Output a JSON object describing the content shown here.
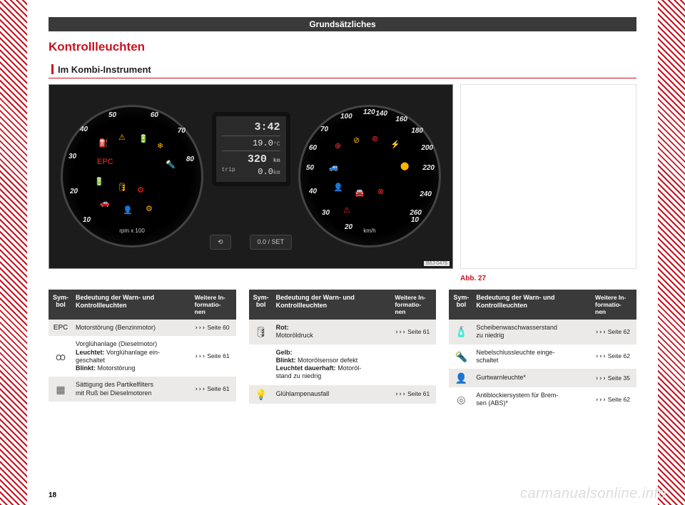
{
  "chapter": "Grundsätzliches",
  "heading": "Kontrollleuchten",
  "section": "Im Kombi-Instrument",
  "page_number": "18",
  "watermark": "carmanualsonline.info",
  "figure": {
    "caption": "Abb. 27",
    "code": "B6J-0476",
    "lcd": {
      "time": "3:42",
      "temp_value": "19.0",
      "temp_unit": "°C",
      "odo_value": "320",
      "odo_unit": "km",
      "trip_label": "trip",
      "trip_value": "0.0",
      "trip_unit": "km"
    },
    "buttons": {
      "left": "⟲",
      "right": "0.0 / SET"
    },
    "dial_left": {
      "unit": "rpm x 100",
      "ticks": [
        "10",
        "20",
        "30",
        "40",
        "50",
        "60",
        "70",
        "80"
      ]
    },
    "dial_right": {
      "unit": "km/h",
      "ticks": [
        "10",
        "20",
        "30",
        "40",
        "50",
        "60",
        "70",
        "100",
        "120",
        "140",
        "160",
        "180",
        "200",
        "220",
        "240",
        "260"
      ]
    }
  },
  "table_headers": {
    "c1": "Sym-\nbol",
    "c2": "Bedeutung der Warn-\nund Kontrollleuchten",
    "c3": "Weitere In-\nformatio-\nnen"
  },
  "col1": [
    {
      "sym": "EPC",
      "sym_kind": "txt",
      "text": "Motorstörung (Benzinmotor)",
      "ref": "Seite 60"
    },
    {
      "sym": "ꚙ",
      "sym_kind": "",
      "text": "Vorglühanlage (Dieselmotor)<br><b>Leuchtet:</b> Vorglühanlage ein-<br>geschaltet<br><b>Blinkt:</b> Motorstörung",
      "ref": "Seite 61"
    },
    {
      "sym": "▦",
      "sym_kind": "",
      "text": "Sättigung des Partikelfilters<br>mit Ruß bei Dieselmotoren",
      "ref": "Seite 61"
    }
  ],
  "col2": [
    {
      "sym": "🛢",
      "sym_kind": "",
      "text": "<b>Rot:</b><br>Motoröldruck",
      "ref": "Seite 61",
      "rowspan": true
    },
    {
      "sym": "",
      "sym_kind": "",
      "text": "<b>Gelb:</b><br><b>Blinkt:</b> Motorölsensor defekt<br><b>Leuchtet dauerhaft:</b> Motoröl-<br>stand zu niedrig",
      "ref": ""
    },
    {
      "sym": "💡",
      "sym_kind": "",
      "text": "Glühlampenausfall",
      "ref": "Seite 61"
    }
  ],
  "col3": [
    {
      "sym": "🧴",
      "sym_kind": "",
      "text": "Scheibenwaschwasserstand<br>zu niedrig",
      "ref": "Seite 62"
    },
    {
      "sym": "🔦",
      "sym_kind": "",
      "text": "Nebelschlussleuchte einge-<br>schaltet",
      "ref": "Seite 62"
    },
    {
      "sym": "👤",
      "sym_kind": "",
      "text": "Gurtwarnleuchte*",
      "ref": "Seite 35"
    },
    {
      "sym": "◎",
      "sym_kind": "",
      "text": "Antiblockiersystem für Brem-<br>sen (ABS)*",
      "ref": "Seite 62"
    }
  ]
}
